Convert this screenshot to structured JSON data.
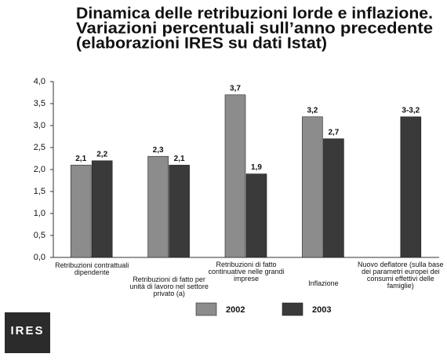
{
  "chart_data": {
    "type": "bar",
    "title": [
      "Dinamica delle retribuzioni lorde e inflazione.",
      "Variazioni percentuali sull’anno precedente",
      "(elaborazioni IRES su dati Istat)"
    ],
    "categories": [
      "Retribuzioni contrattuali dipendente",
      "Retribuzioni di fatto per unità di lavoro nel settore privato (a)",
      "Retribuzioni di fatto continuative nelle grandi imprese",
      "Inflazione",
      "Nuovo deflatore (sulla base dei parametri europei dei consumi effettivi delle famiglie)"
    ],
    "series": [
      {
        "name": "2002",
        "color": "#8c8c8c",
        "values": [
          2.1,
          2.3,
          3.7,
          3.2,
          null
        ],
        "value_labels": [
          "2,1",
          "2,3",
          "3,7",
          "3,2",
          null
        ]
      },
      {
        "name": "2003",
        "color": "#3a3a3a",
        "values": [
          2.2,
          2.1,
          1.9,
          2.7,
          3.2
        ],
        "value_labels": [
          "2,2",
          "2,1",
          "1,9",
          "2,7",
          "3-3,2"
        ]
      }
    ],
    "ylim": [
      0,
      4
    ],
    "yticks": [
      {
        "value": 0,
        "label": "0,0"
      },
      {
        "value": 0.5,
        "label": "0,5"
      },
      {
        "value": 1,
        "label": "1,0"
      },
      {
        "value": 1.5,
        "label": "1,5"
      },
      {
        "value": 2,
        "label": "2,0"
      },
      {
        "value": 2.5,
        "label": "2,5"
      },
      {
        "value": 3,
        "label": "3,0"
      },
      {
        "value": 3.5,
        "label": "3,5"
      },
      {
        "value": 4,
        "label": "4,0"
      }
    ],
    "legend": "bottom",
    "logo": "IRES"
  }
}
